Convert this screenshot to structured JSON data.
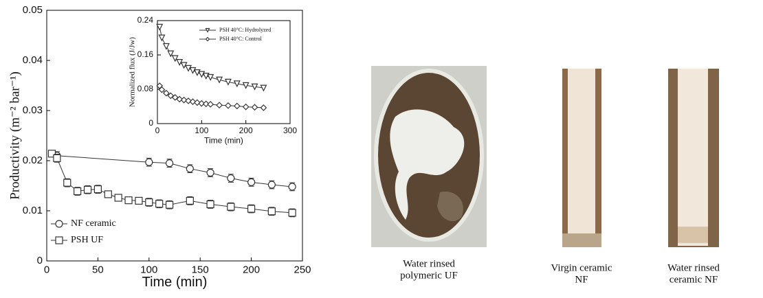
{
  "chart_data": [
    {
      "type": "line",
      "xlabel": "Time (min)",
      "ylabel": "Productivity (m⁻² bar⁻¹)",
      "xlim": [
        0,
        250
      ],
      "xticks": [
        0,
        50,
        100,
        150,
        200,
        250
      ],
      "ylim": [
        0,
        0.05
      ],
      "yticks": [
        0,
        0.01,
        0.02,
        0.03,
        0.04,
        0.05
      ],
      "legend": "lower left",
      "series": [
        {
          "name": "NF ceramic",
          "color": "#333333",
          "marker": "circle",
          "x": [
            10,
            100,
            120,
            140,
            160,
            180,
            200,
            220,
            240
          ],
          "values": [
            0.021,
            0.0197,
            0.0195,
            0.0184,
            0.0176,
            0.0165,
            0.0157,
            0.0152,
            0.0148
          ],
          "errors": [
            0.0008,
            0.0008,
            0.0008,
            0.0008,
            0.0008,
            0.0008,
            0.0008,
            0.0008,
            0.0008
          ]
        },
        {
          "name": "PSH UF",
          "color": "#333333",
          "marker": "square",
          "x": [
            5,
            10,
            20,
            30,
            40,
            50,
            60,
            70,
            80,
            90,
            100,
            110,
            120,
            140,
            160,
            180,
            200,
            220,
            240
          ],
          "values": [
            0.0214,
            0.0205,
            0.0156,
            0.0139,
            0.0142,
            0.0143,
            0.0133,
            0.0126,
            0.0121,
            0.012,
            0.0117,
            0.0114,
            0.0112,
            0.012,
            0.0113,
            0.0108,
            0.0104,
            0.0099,
            0.0096
          ],
          "errors": [
            0.0006,
            0.0008,
            0.0008,
            0.0008,
            0.0008,
            0.0008,
            0.0006,
            0.0006,
            0.0006,
            0.0006,
            0.0008,
            0.0008,
            0.0008,
            0.0008,
            0.0008,
            0.0008,
            0.0008,
            0.0008,
            0.0008
          ]
        }
      ]
    },
    {
      "type": "line",
      "xlabel": "Time (min)",
      "ylabel": "Normalized flux (J/Jw)",
      "xlim": [
        0,
        300
      ],
      "xticks": [
        0,
        100,
        200,
        300
      ],
      "ylim": [
        0,
        0.24
      ],
      "yticks": [
        0,
        0.08,
        0.16,
        0.24
      ],
      "legend": "upper right",
      "series": [
        {
          "name": "PSH 40°C: Hydrolyzed",
          "color": "#333333",
          "marker": "triangle-down",
          "x": [
            5,
            10,
            20,
            30,
            40,
            50,
            60,
            70,
            80,
            90,
            100,
            110,
            120,
            140,
            160,
            180,
            200,
            220,
            240
          ],
          "values": [
            0.225,
            0.2,
            0.18,
            0.163,
            0.152,
            0.143,
            0.136,
            0.129,
            0.124,
            0.119,
            0.115,
            0.111,
            0.108,
            0.102,
            0.097,
            0.093,
            0.089,
            0.086,
            0.083
          ]
        },
        {
          "name": "PSH 40°C: Control",
          "color": "#333333",
          "marker": "diamond",
          "x": [
            5,
            10,
            20,
            30,
            40,
            50,
            60,
            70,
            80,
            90,
            100,
            110,
            120,
            140,
            160,
            180,
            200,
            220,
            240
          ],
          "values": [
            0.088,
            0.079,
            0.071,
            0.065,
            0.061,
            0.057,
            0.055,
            0.053,
            0.051,
            0.049,
            0.047,
            0.046,
            0.045,
            0.043,
            0.042,
            0.041,
            0.039,
            0.038,
            0.037
          ]
        }
      ]
    }
  ],
  "captions": [
    [
      "Water rinsed",
      "polymeric UF"
    ],
    [
      "Virgin ceramic",
      "NF"
    ],
    [
      "Water rinsed",
      "ceramic NF"
    ]
  ]
}
